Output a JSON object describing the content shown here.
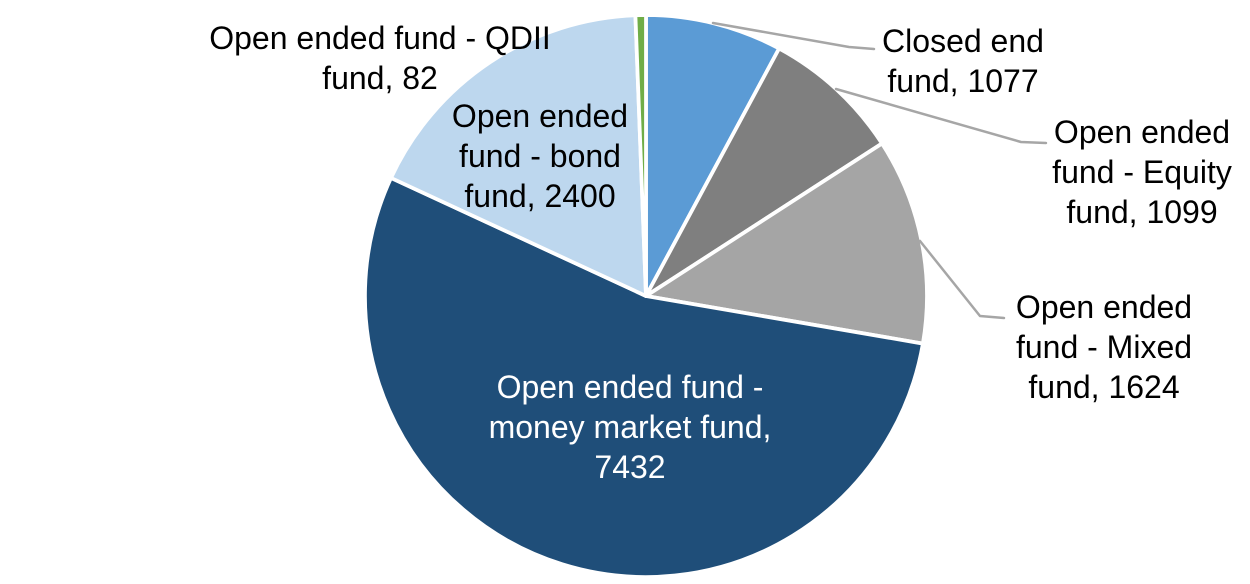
{
  "chart_data": {
    "type": "pie",
    "title": "",
    "legend_position": "none",
    "background": "#FFFFFF",
    "start_angle_deg": 0,
    "direction": "clockwise",
    "categories": [
      "Closed end fund",
      "Open ended fund - Equity fund",
      "Open ended fund - Mixed fund",
      "Open ended fund - money market fund",
      "Open ended fund - bond fund",
      "Open ended fund - QDII fund"
    ],
    "values": [
      1077,
      1099,
      1624,
      7432,
      2400,
      82
    ],
    "slices": [
      {
        "name": "Closed end fund",
        "value": 1077,
        "color": "#5B9BD5",
        "label": "Closed end\nfund, 1077",
        "label_placement": "outside"
      },
      {
        "name": "Open ended fund - Equity fund",
        "value": 1099,
        "color": "#7F7F7F",
        "label": "Open ended\nfund - Equity\nfund, 1099",
        "label_placement": "outside"
      },
      {
        "name": "Open ended fund - Mixed fund",
        "value": 1624,
        "color": "#A5A5A5",
        "label": "Open ended\nfund - Mixed\nfund, 1624",
        "label_placement": "outside"
      },
      {
        "name": "Open ended fund - money market fund",
        "value": 7432,
        "color": "#1F4E79",
        "label": "Open ended fund -\nmoney market fund,\n7432",
        "label_placement": "inside"
      },
      {
        "name": "Open ended fund - bond fund",
        "value": 2400,
        "color": "#BDD7EE",
        "label": "Open ended\nfund - bond\nfund, 2400",
        "label_placement": "outside"
      },
      {
        "name": "Open ended fund - QDII fund",
        "value": 82,
        "color": "#70AD47",
        "label": "Open ended fund - QDII\nfund, 82",
        "label_placement": "outside"
      }
    ],
    "slice_border_color": "#FFFFFF",
    "leader_line_color": "#A6A6A6",
    "label_text_color": "#000000",
    "inside_label_text_color": "#FFFFFF"
  }
}
